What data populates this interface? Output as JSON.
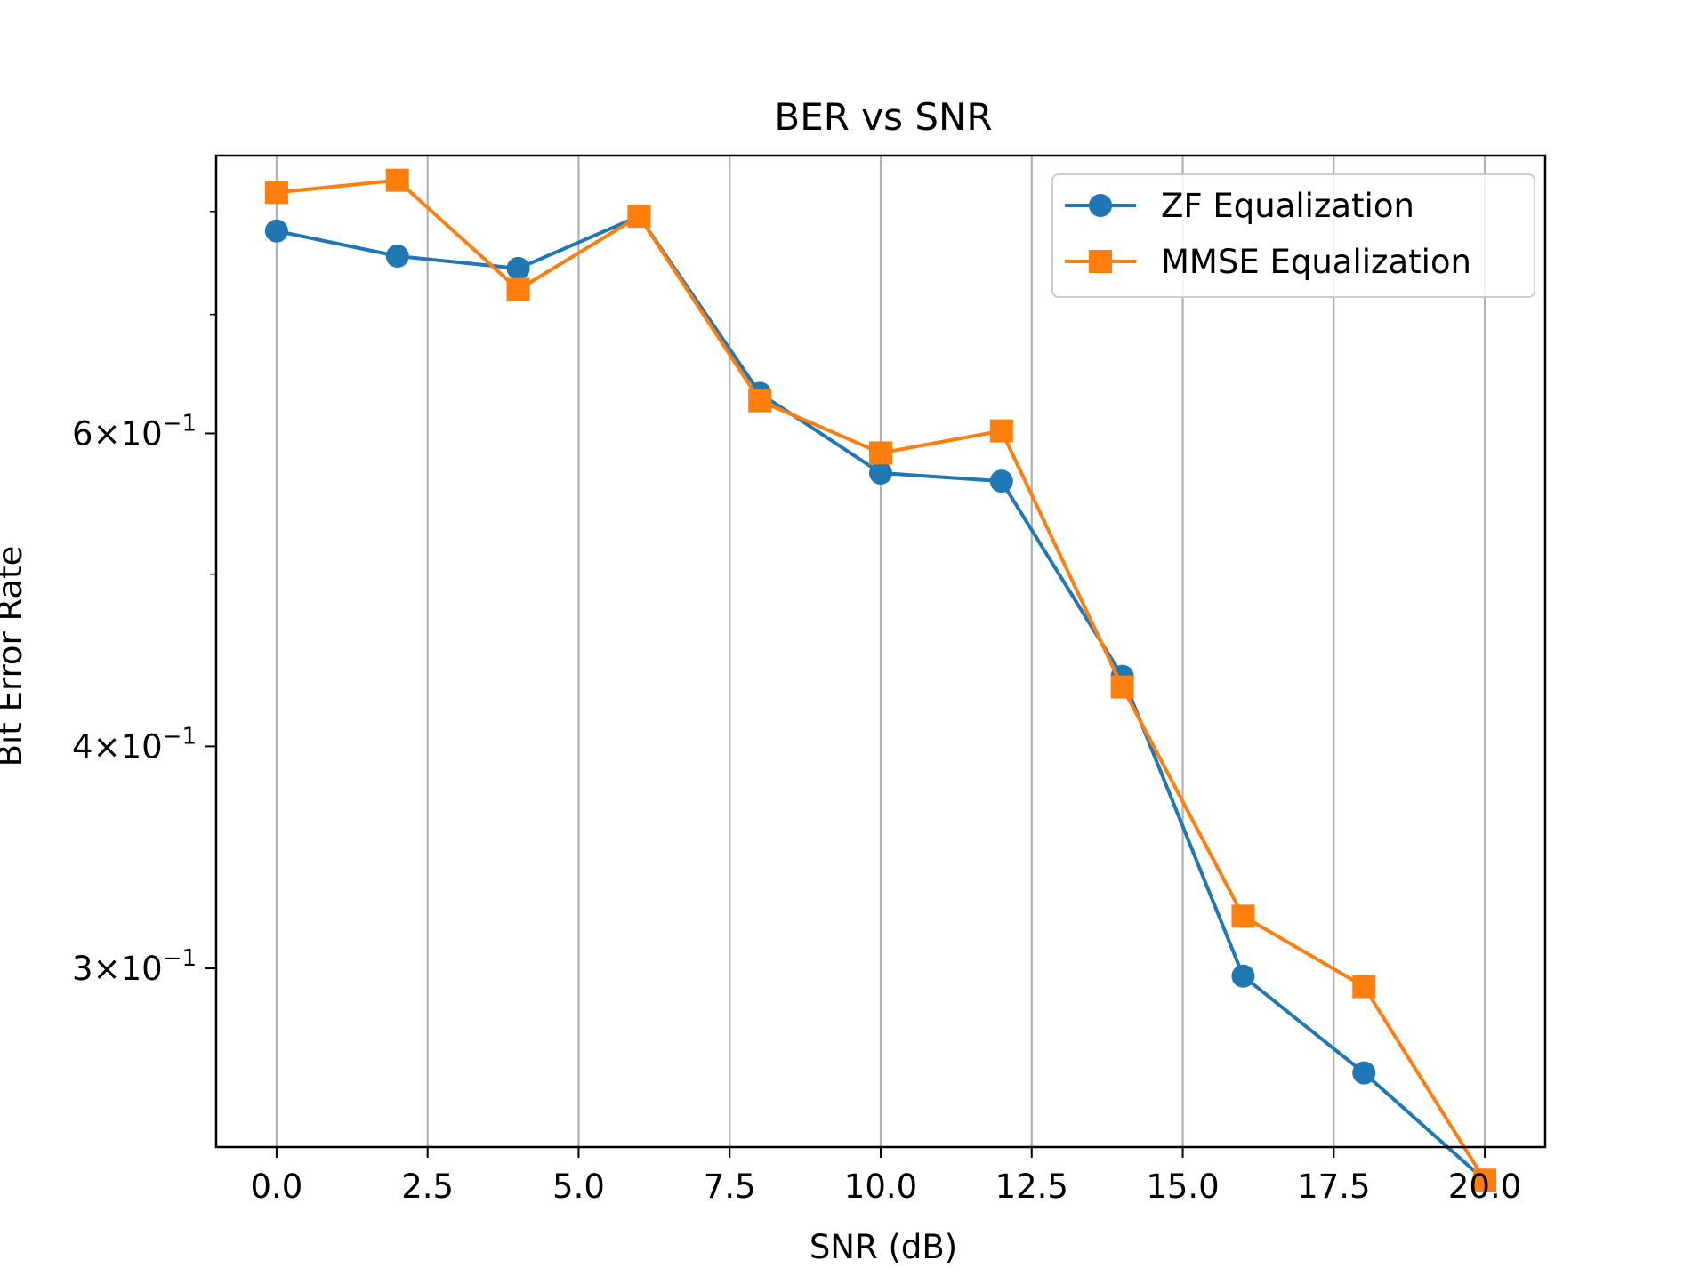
{
  "chart_data": {
    "type": "line",
    "title": "BER vs SNR",
    "xlabel": "SNR (dB)",
    "ylabel": "Bit Error Rate",
    "xlim": [
      -1,
      21
    ],
    "ylim": [
      0.238,
      0.86
    ],
    "yscale": "log",
    "grid": "x-only",
    "legend_position": "top-right",
    "x_ticks": [
      0.0,
      2.5,
      5.0,
      7.5,
      10.0,
      12.5,
      15.0,
      17.5,
      20.0
    ],
    "x_tick_labels": [
      "0.0",
      "2.5",
      "5.0",
      "7.5",
      "10.0",
      "12.5",
      "15.0",
      "17.5",
      "20.0"
    ],
    "y_ticks": [
      {
        "value": 0.6,
        "base": "6",
        "exp": "−1"
      },
      {
        "value": 0.4,
        "base": "4",
        "exp": "−1"
      },
      {
        "value": 0.3,
        "base": "3",
        "exp": "−1"
      }
    ],
    "x": [
      0,
      2,
      4,
      6,
      8,
      10,
      12,
      14,
      16,
      18,
      20
    ],
    "series": [
      {
        "name": "ZF Equalization",
        "color": "#1f77b4",
        "marker": "circle",
        "values": [
          0.78,
          0.755,
          0.743,
          0.795,
          0.632,
          0.57,
          0.564,
          0.438,
          0.297,
          0.262,
          0.228
        ]
      },
      {
        "name": "MMSE Equalization",
        "color": "#ff7f0e",
        "marker": "square",
        "values": [
          0.82,
          0.833,
          0.723,
          0.795,
          0.626,
          0.585,
          0.602,
          0.432,
          0.321,
          0.293,
          0.228
        ]
      }
    ]
  }
}
